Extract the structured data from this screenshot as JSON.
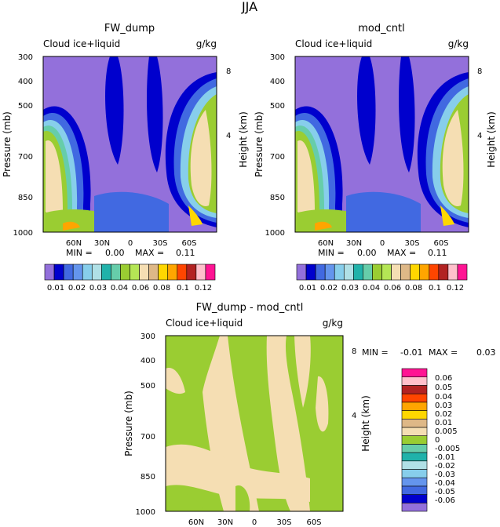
{
  "title": "JJA",
  "colors": {
    "abs_levels": [
      "#9370db",
      "#0000cd",
      "#4169e1",
      "#6495ed",
      "#87ceeb",
      "#b0e0e6",
      "#20b2aa",
      "#66cdaa",
      "#9acd32",
      "#b5e655",
      "#f5deb3",
      "#deb887",
      "#ffd700",
      "#ffa500",
      "#ff4500",
      "#b22222",
      "#ffc0cb",
      "#ff1493"
    ],
    "diff_levels": [
      "#9370db",
      "#0000cd",
      "#4169e1",
      "#6495ed",
      "#87ceeb",
      "#b0e0e6",
      "#20b2aa",
      "#66cdaa",
      "#9acd32",
      "#f5deb3",
      "#deb887",
      "#ffd700",
      "#ffa500",
      "#ff4500",
      "#b22222",
      "#ffc0cb",
      "#ff1493"
    ]
  },
  "chart_data": [
    {
      "type": "heatmap",
      "title": "FW_dump",
      "left_label": "Cloud ice+liquid",
      "right_label": "g/kg",
      "ylabel": "Pressure (mb)",
      "y2label": "Height (km)",
      "y_ticks": [
        "300",
        "400",
        "500",
        "700",
        "850",
        "1000"
      ],
      "y2_ticks": [
        "8",
        "4"
      ],
      "x_ticks": [
        "60N",
        "30N",
        "0",
        "30S",
        "60S"
      ],
      "min_label": "MIN =",
      "min_value": "0.00",
      "max_label": "MAX =",
      "max_value": "0.11",
      "colorbar_labels": [
        "0.01",
        "0.02",
        "0.03",
        "0.04",
        "0.06",
        "0.08",
        "0.1",
        "0.12"
      ]
    },
    {
      "type": "heatmap",
      "title": "mod_cntl",
      "left_label": "Cloud ice+liquid",
      "right_label": "g/kg",
      "ylabel": "Pressure (mb)",
      "y2label": "Height (km)",
      "y_ticks": [
        "300",
        "400",
        "500",
        "700",
        "850",
        "1000"
      ],
      "y2_ticks": [
        "8",
        "4"
      ],
      "x_ticks": [
        "60N",
        "30N",
        "0",
        "30S",
        "60S"
      ],
      "min_label": "MIN =",
      "min_value": "0.00",
      "max_label": "MAX =",
      "max_value": "0.11",
      "colorbar_labels": [
        "0.01",
        "0.02",
        "0.03",
        "0.04",
        "0.06",
        "0.08",
        "0.1",
        "0.12"
      ]
    },
    {
      "type": "heatmap",
      "title": "FW_dump - mod_cntl",
      "left_label": "Cloud ice+liquid",
      "right_label": "g/kg",
      "ylabel": "Pressure (mb)",
      "y2label": "Height (km)",
      "y_ticks": [
        "300",
        "400",
        "500",
        "700",
        "850",
        "1000"
      ],
      "y2_ticks": [
        "8",
        "4"
      ],
      "x_ticks": [
        "60N",
        "30N",
        "0",
        "30S",
        "60S"
      ],
      "min_label": "MIN =",
      "min_value": "-0.01",
      "max_label": "MAX =",
      "max_value": "0.03",
      "colorbar_labels": [
        "0.06",
        "0.05",
        "0.04",
        "0.03",
        "0.02",
        "0.01",
        "0.005",
        "0",
        "-0.005",
        "-0.01",
        "-0.02",
        "-0.03",
        "-0.04",
        "-0.05",
        "-0.06"
      ]
    }
  ]
}
